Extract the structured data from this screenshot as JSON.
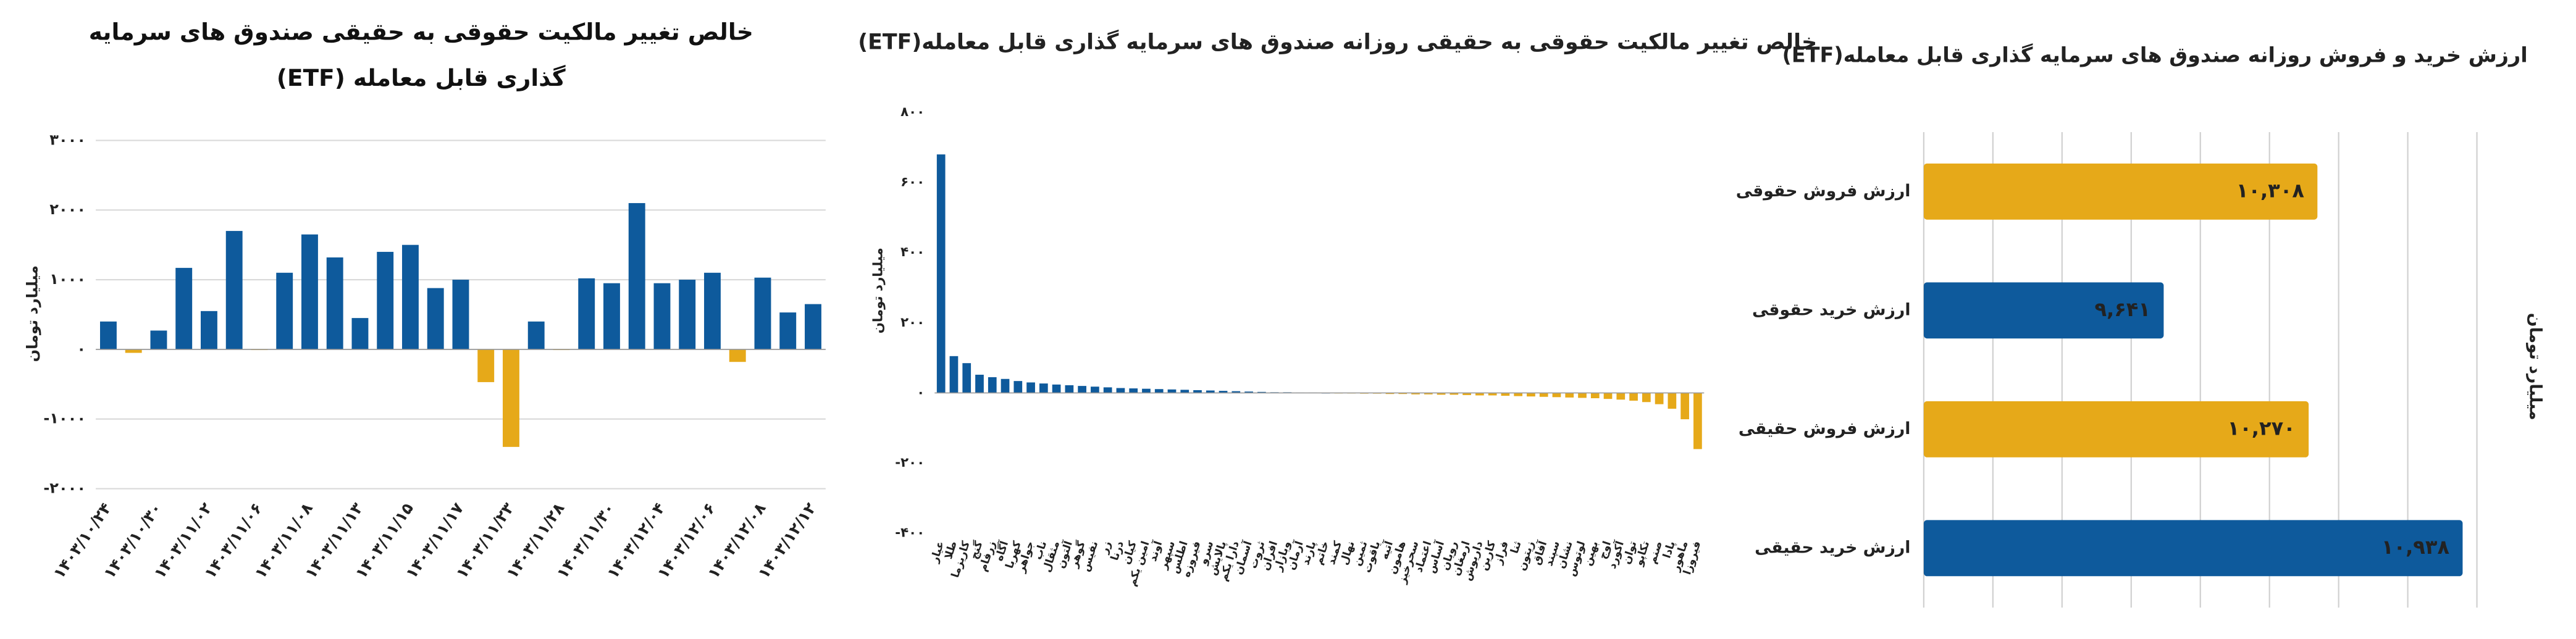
{
  "chart_data": [
    {
      "type": "bar",
      "title": "خالص تغییر مالکیت حقوقی به حقیقی صندوق های سرمایه گذاری قابل معامله (ETF)",
      "ylabel": "میلیارد تومان",
      "categories": [
        "۱۴۰۳/۱۰/۲۴",
        null,
        "۱۴۰۳/۱۰/۳۰",
        null,
        "۱۴۰۳/۱۱/۰۲",
        null,
        "۱۴۰۳/۱۱/۰۶",
        null,
        "۱۴۰۳/۱۱/۰۸",
        null,
        "۱۴۰۳/۱۱/۱۳",
        null,
        "۱۴۰۳/۱۱/۱۵",
        null,
        "۱۴۰۳/۱۱/۱۷",
        null,
        "۱۴۰۳/۱۱/۲۳",
        null,
        "۱۴۰۳/۱۱/۲۸",
        null,
        "۱۴۰۳/۱۱/۳۰",
        null,
        "۱۴۰۳/۱۲/۰۴",
        null,
        "۱۴۰۳/۱۲/۰۶",
        null,
        "۱۴۰۳/۱۲/۰۸",
        null,
        "۱۴۰۳/۱۲/۱۲"
      ],
      "values": [
        400,
        -50,
        270,
        1170,
        550,
        1700,
        -10,
        1100,
        1650,
        1320,
        450,
        1400,
        1500,
        880,
        1000,
        -470,
        -1400,
        400,
        -10,
        1020,
        950,
        2100,
        950,
        1000,
        1100,
        -180,
        1030,
        530,
        650
      ],
      "color_positive": "#0e5a9c",
      "color_negative": "#e6a919",
      "ylim": [
        -2000,
        3000
      ],
      "yticks": [
        {
          "value": -2000,
          "label": "-۲۰۰۰"
        },
        {
          "value": -1000,
          "label": "-۱۰۰۰"
        },
        {
          "value": 0,
          "label": "۰"
        },
        {
          "value": 1000,
          "label": "۱۰۰۰"
        },
        {
          "value": 2000,
          "label": "۲۰۰۰"
        },
        {
          "value": 3000,
          "label": "۳۰۰۰"
        }
      ],
      "grid": true
    },
    {
      "type": "bar",
      "title": "خالص تغییر مالکیت حقوقی به حقیقی روزانه صندوق های سرمایه گذاری قابل معامله(ETF)",
      "ylabel": "میلیارد تومان",
      "categories": [
        "عیار",
        "طلا",
        "کاریزما",
        "گنج",
        "زرفام",
        "آگاه",
        "کهربا",
        "جواهر",
        "ناب",
        "مثقال",
        "آلتون",
        "گوهر",
        "نفیس",
        "زر",
        "درنا",
        "کیان",
        "امین یکم",
        "آوند",
        "سپهر",
        "اطلس",
        "فیروزه",
        "سرو",
        "پالایش",
        "دارا یکم",
        "آسمان",
        "ثروت",
        "افران",
        "وبازار",
        "آرمان",
        "پارند",
        "خاتم",
        "کمند",
        "نهال",
        "ثمین",
        "یاقوت",
        "آتیه",
        "هامون",
        "سحرخیز",
        "اعتماد",
        "آساس",
        "رویان",
        "ارمغان",
        "داریوش",
        "کارین",
        "فراز",
        "ثنا",
        "زیتون",
        "آفاق",
        "سپند",
        "نشان",
        "لوتوس",
        "بهین",
        "اوج",
        "آکورد",
        "توان",
        "تکاپو",
        "صنم",
        "پادا",
        "ماهور",
        "فیروزا"
      ],
      "values": [
        680,
        105,
        85,
        52,
        45,
        40,
        34,
        30,
        27,
        24,
        22,
        20,
        18,
        16,
        14,
        13,
        12,
        11,
        10,
        9,
        8,
        7,
        6,
        5,
        4,
        3,
        2,
        2,
        1,
        1,
        0,
        -1,
        -1,
        -2,
        -2,
        -3,
        -3,
        -4,
        -4,
        -5,
        -5,
        -6,
        -7,
        -7,
        -8,
        -9,
        -10,
        -11,
        -12,
        -13,
        -14,
        -15,
        -17,
        -19,
        -22,
        -26,
        -32,
        -45,
        -75,
        -160
      ],
      "color_positive": "#0e5a9c",
      "color_negative": "#e6a919",
      "ylim": [
        -400,
        800
      ],
      "yticks": [
        {
          "value": -400,
          "label": "-۴۰۰"
        },
        {
          "value": -200,
          "label": "-۲۰۰"
        },
        {
          "value": 0,
          "label": "۰"
        },
        {
          "value": 200,
          "label": "۲۰۰"
        },
        {
          "value": 400,
          "label": "۴۰۰"
        },
        {
          "value": 600,
          "label": "۶۰۰"
        },
        {
          "value": 800,
          "label": "۸۰۰"
        }
      ],
      "grid": false
    },
    {
      "type": "barh",
      "title": "ارزش خرید و فروش روزانه صندوق های سرمایه گذاری قابل معامله(ETF)",
      "ylabel": "میلیارد تومان",
      "categories": [
        "ارزش فروش حقوقی",
        "ارزش خرید حقوقی",
        "ارزش فروش حقیقی",
        "ارزش خرید حقیقی"
      ],
      "values": [
        10308,
        9641,
        10270,
        10938
      ],
      "value_labels": [
        "۱۰,۳۰۸",
        "۹,۶۴۱",
        "۱۰,۲۷۰",
        "۱۰,۹۳۸"
      ],
      "colors": [
        "#e6a919",
        "#0e5a9c",
        "#e6a919",
        "#0e5a9c"
      ],
      "xlim": [
        8600,
        11000
      ],
      "xticks": [
        8600,
        8900,
        9200,
        9500,
        9800,
        10100,
        10400,
        10700,
        11000
      ],
      "grid": true
    }
  ]
}
